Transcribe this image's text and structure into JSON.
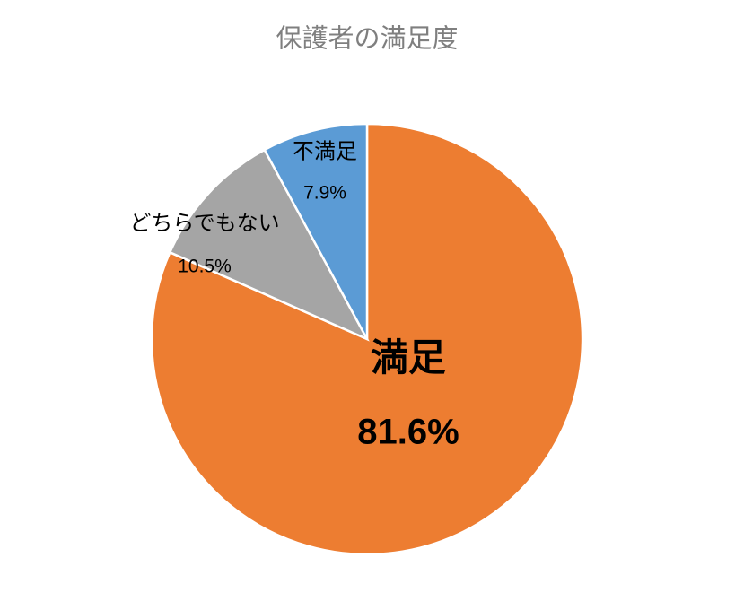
{
  "chart_data": {
    "type": "pie",
    "title": "保護者の満足度",
    "categories": [
      "満足",
      "どちらでもない",
      "不満足"
    ],
    "values": [
      81.6,
      10.5,
      7.9
    ],
    "value_labels": [
      "81.6%",
      "10.5%",
      "7.9%"
    ],
    "colors": [
      "#ED7D31",
      "#A5A5A5",
      "#5B9BD5"
    ]
  }
}
